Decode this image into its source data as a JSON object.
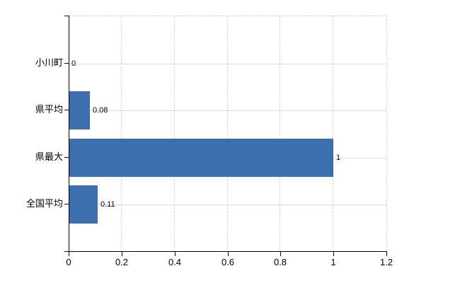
{
  "chart_data": {
    "type": "bar",
    "orientation": "horizontal",
    "categories": [
      "小川町",
      "県平均",
      "県最大",
      "全国平均"
    ],
    "values": [
      0,
      0.08,
      1,
      0.11
    ],
    "value_labels": [
      "0",
      "0.08",
      "1",
      "0.11"
    ],
    "x_axis": {
      "min": 0,
      "max": 1.2,
      "ticks": [
        0,
        0.2,
        0.4,
        0.6,
        0.8,
        1,
        1.2
      ],
      "tick_labels": [
        "0",
        "0.2",
        "0.4",
        "0.6",
        "0.8",
        "1",
        "1.2"
      ]
    },
    "grid": {
      "vertical": "dashed",
      "horizontal_at_category_centers": "solid",
      "top_border": "dashed",
      "right_border": "dashed"
    },
    "legend": "none",
    "colors": {
      "bar": "#3d6fae",
      "axis": "#000000",
      "grid_vertical": "#d4d4d4",
      "grid_horizontal": "#d8e0d8",
      "text": "#000000",
      "background": "#ffffff"
    }
  }
}
